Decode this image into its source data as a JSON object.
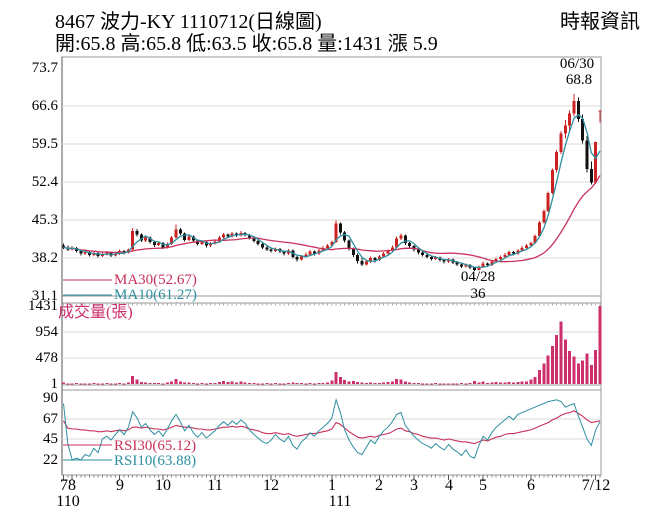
{
  "header": {
    "title": "8467 波力-KY 1110712(日線圖)",
    "source": "時報資訊",
    "quote": "開:65.8 高:65.8 低:63.5 收:65.8 量:1431 漲 5.9"
  },
  "legends": {
    "ma30": "MA30(52.67)",
    "ma10": "MA10(61.27)",
    "volume": "成交量(張)",
    "rsi30": "RSI30(65.12)",
    "rsi10": "RSI10(63.88)"
  },
  "annotations": {
    "peak_date": "06/30",
    "peak_price": "68.8",
    "low_date": "04/28",
    "low_price": "36"
  },
  "colors": {
    "up": "#cc2222",
    "down": "#111111",
    "ma30": "#c8325a",
    "ma10": "#2e8fa0",
    "rsi30": "#c8325a",
    "rsi10": "#2e8fa0",
    "volume": "#cc2f6b",
    "grid": "#d9d9d9",
    "frame": "#999999",
    "border_dark": "#555555"
  },
  "chart_data": {
    "type": "candlestick",
    "title": "8467 波力-KY 1110712(日線圖)",
    "panels": [
      "price",
      "volume",
      "rsi"
    ],
    "price_axis_ticks": [
      73.7,
      66.6,
      59.5,
      52.4,
      45.3,
      38.2,
      31.1
    ],
    "price_gridlines": [
      66.6,
      59.5,
      52.4,
      45.3,
      38.2
    ],
    "price_range": [
      31.1,
      73.7
    ],
    "volume_axis_ticks": [
      1431,
      954,
      478,
      1
    ],
    "volume_gridlines": [
      954,
      478
    ],
    "rsi_axis_ticks": [
      90,
      67,
      45,
      22
    ],
    "rsi_gridlines": [
      67,
      45
    ],
    "x_ticks": {
      "months": [
        {
          "label": "7",
          "i": 0
        },
        {
          "label": "8",
          "i": 2
        },
        {
          "label": "9",
          "i": 13
        },
        {
          "label": "10",
          "i": 23
        },
        {
          "label": "11",
          "i": 35
        },
        {
          "label": "12",
          "i": 48
        },
        {
          "label": "1",
          "i": 62
        },
        {
          "label": "2",
          "i": 73
        },
        {
          "label": "3",
          "i": 81
        },
        {
          "label": "4",
          "i": 89
        },
        {
          "label": "5",
          "i": 97
        },
        {
          "label": "6",
          "i": 108
        },
        {
          "label": "7/12",
          "i": 123
        }
      ],
      "years": [
        {
          "label": "110",
          "i": 1
        },
        {
          "label": "111",
          "i": 64
        }
      ]
    },
    "ma10_window": 4,
    "ma30_window": 20,
    "ohlc": [
      [
        40.5,
        40.9,
        39.9,
        40.2
      ],
      [
        40.2,
        40.5,
        39.5,
        39.8
      ],
      [
        39.8,
        40.4,
        39.6,
        40.1
      ],
      [
        40.1,
        40.3,
        39.2,
        39.5
      ],
      [
        39.5,
        39.7,
        38.7,
        39.0
      ],
      [
        39.0,
        39.6,
        38.8,
        39.3
      ],
      [
        39.3,
        39.5,
        38.5,
        38.8
      ],
      [
        38.8,
        39.4,
        38.6,
        39.1
      ],
      [
        39.1,
        39.3,
        38.3,
        38.6
      ],
      [
        38.6,
        39.2,
        38.4,
        38.9
      ],
      [
        38.9,
        39.5,
        38.7,
        39.2
      ],
      [
        39.2,
        39.4,
        38.4,
        38.7
      ],
      [
        38.7,
        39.3,
        38.5,
        39.0
      ],
      [
        39.0,
        39.8,
        38.8,
        39.5
      ],
      [
        39.5,
        39.7,
        38.9,
        39.2
      ],
      [
        39.2,
        40.0,
        39.0,
        39.8
      ],
      [
        39.8,
        43.8,
        39.6,
        43.2
      ],
      [
        43.2,
        43.6,
        42.2,
        42.6
      ],
      [
        42.6,
        42.8,
        41.2,
        41.5
      ],
      [
        41.5,
        42.3,
        41.2,
        42.0
      ],
      [
        42.0,
        42.2,
        40.9,
        41.2
      ],
      [
        41.2,
        41.4,
        40.3,
        40.6
      ],
      [
        40.6,
        41.3,
        40.4,
        41.0
      ],
      [
        41.0,
        41.2,
        39.9,
        40.2
      ],
      [
        40.2,
        41.1,
        40.0,
        40.8
      ],
      [
        40.8,
        42.3,
        40.6,
        42.0
      ],
      [
        42.0,
        44.5,
        41.8,
        43.5
      ],
      [
        43.5,
        43.8,
        42.5,
        42.8
      ],
      [
        42.8,
        43.0,
        41.3,
        41.6
      ],
      [
        41.6,
        42.5,
        41.4,
        42.2
      ],
      [
        42.2,
        42.4,
        41.2,
        41.5
      ],
      [
        41.5,
        41.7,
        40.5,
        40.8
      ],
      [
        40.8,
        41.5,
        40.6,
        41.2
      ],
      [
        41.2,
        41.4,
        40.2,
        40.5
      ],
      [
        40.5,
        41.2,
        40.3,
        40.9
      ],
      [
        40.9,
        41.6,
        40.7,
        41.3
      ],
      [
        41.3,
        42.3,
        41.1,
        42.0
      ],
      [
        42.0,
        42.9,
        41.8,
        42.6
      ],
      [
        42.6,
        42.8,
        41.9,
        42.2
      ],
      [
        42.2,
        43.1,
        42.0,
        42.8
      ],
      [
        42.8,
        43.0,
        42.1,
        42.4
      ],
      [
        42.4,
        43.2,
        42.2,
        42.9
      ],
      [
        42.9,
        43.1,
        42.2,
        42.5
      ],
      [
        42.5,
        42.7,
        41.7,
        42.0
      ],
      [
        42.0,
        42.2,
        41.1,
        41.4
      ],
      [
        41.4,
        41.6,
        40.5,
        40.8
      ],
      [
        40.8,
        41.0,
        39.9,
        40.2
      ],
      [
        40.2,
        40.4,
        39.5,
        39.8
      ],
      [
        39.8,
        40.0,
        39.2,
        39.5
      ],
      [
        39.5,
        40.2,
        39.3,
        39.9
      ],
      [
        39.9,
        40.1,
        39.1,
        39.4
      ],
      [
        39.4,
        39.6,
        38.7,
        39.0
      ],
      [
        39.0,
        39.9,
        38.8,
        39.6
      ],
      [
        39.6,
        39.8,
        38.1,
        38.4
      ],
      [
        38.4,
        38.6,
        37.5,
        37.9
      ],
      [
        37.9,
        38.8,
        37.7,
        38.5
      ],
      [
        38.5,
        39.2,
        38.3,
        38.9
      ],
      [
        38.9,
        39.7,
        38.7,
        39.4
      ],
      [
        39.4,
        39.6,
        38.7,
        39.0
      ],
      [
        39.0,
        39.9,
        38.8,
        39.6
      ],
      [
        39.6,
        40.4,
        39.4,
        40.1
      ],
      [
        40.1,
        40.8,
        39.9,
        40.5
      ],
      [
        40.5,
        41.5,
        40.3,
        41.2
      ],
      [
        41.2,
        45.2,
        41.0,
        44.6
      ],
      [
        44.6,
        44.8,
        42.6,
        43.0
      ],
      [
        43.0,
        43.2,
        41.1,
        41.5
      ],
      [
        41.5,
        41.7,
        39.6,
        40.0
      ],
      [
        40.0,
        40.2,
        38.4,
        38.8
      ],
      [
        38.8,
        39.0,
        37.2,
        37.6
      ],
      [
        37.6,
        38.2,
        36.7,
        37.0
      ],
      [
        37.0,
        37.9,
        36.8,
        37.5
      ],
      [
        37.5,
        38.5,
        37.3,
        38.2
      ],
      [
        38.2,
        38.4,
        37.4,
        37.8
      ],
      [
        37.8,
        38.8,
        37.6,
        38.5
      ],
      [
        38.5,
        39.3,
        38.3,
        39.0
      ],
      [
        39.0,
        39.8,
        38.8,
        39.5
      ],
      [
        39.5,
        40.5,
        39.3,
        40.2
      ],
      [
        40.2,
        42.2,
        40.0,
        41.8
      ],
      [
        41.8,
        42.8,
        41.6,
        42.4
      ],
      [
        42.4,
        42.6,
        40.6,
        41.0
      ],
      [
        41.0,
        41.2,
        40.0,
        40.4
      ],
      [
        40.4,
        40.6,
        39.4,
        39.8
      ],
      [
        39.8,
        40.0,
        38.9,
        39.2
      ],
      [
        39.2,
        39.4,
        38.5,
        38.8
      ],
      [
        38.8,
        39.0,
        38.1,
        38.4
      ],
      [
        38.4,
        38.6,
        37.7,
        38.0
      ],
      [
        38.0,
        38.6,
        37.8,
        38.3
      ],
      [
        38.3,
        38.5,
        37.5,
        37.8
      ],
      [
        37.8,
        38.0,
        37.2,
        37.5
      ],
      [
        37.5,
        38.2,
        37.3,
        37.9
      ],
      [
        37.9,
        38.1,
        37.1,
        37.4
      ],
      [
        37.4,
        37.6,
        36.7,
        37.0
      ],
      [
        37.0,
        37.2,
        36.3,
        36.6
      ],
      [
        36.6,
        37.2,
        36.4,
        36.9
      ],
      [
        36.9,
        37.1,
        36.1,
        36.4
      ],
      [
        36.4,
        36.6,
        35.8,
        36.0
      ],
      [
        36.0,
        36.8,
        35.9,
        36.5
      ],
      [
        36.5,
        37.5,
        36.3,
        37.2
      ],
      [
        37.2,
        37.4,
        36.6,
        36.9
      ],
      [
        36.9,
        37.8,
        36.7,
        37.5
      ],
      [
        37.5,
        38.3,
        37.3,
        38.0
      ],
      [
        38.0,
        38.7,
        37.8,
        38.4
      ],
      [
        38.4,
        39.1,
        38.2,
        38.8
      ],
      [
        38.8,
        39.6,
        38.6,
        39.3
      ],
      [
        39.3,
        39.5,
        38.7,
        39.0
      ],
      [
        39.0,
        39.9,
        38.8,
        39.6
      ],
      [
        39.6,
        40.4,
        39.4,
        40.1
      ],
      [
        40.1,
        40.8,
        39.9,
        40.5
      ],
      [
        40.5,
        41.3,
        40.3,
        41.0
      ],
      [
        41.0,
        42.6,
        40.8,
        42.3
      ],
      [
        42.3,
        45.1,
        42.1,
        44.8
      ],
      [
        44.8,
        47.3,
        44.6,
        47.0
      ],
      [
        47.0,
        50.6,
        46.8,
        50.3
      ],
      [
        50.3,
        54.9,
        50.1,
        54.6
      ],
      [
        54.6,
        58.4,
        54.2,
        58.0
      ],
      [
        58.0,
        61.9,
        57.6,
        61.5
      ],
      [
        61.5,
        64.0,
        60.5,
        63.0
      ],
      [
        63.0,
        65.8,
        62.0,
        65.2
      ],
      [
        65.2,
        68.8,
        64.6,
        67.5
      ],
      [
        67.5,
        68.2,
        63.6,
        64.2
      ],
      [
        64.2,
        65.0,
        59.6,
        60.2
      ],
      [
        60.2,
        61.0,
        54.2,
        54.8
      ],
      [
        54.8,
        56.2,
        51.9,
        52.3
      ],
      [
        52.3,
        60.0,
        52.0,
        59.9
      ],
      [
        65.8,
        65.8,
        63.5,
        65.8
      ]
    ],
    "volume": [
      25,
      12,
      8,
      15,
      10,
      6,
      9,
      14,
      7,
      11,
      18,
      9,
      12,
      22,
      10,
      30,
      150,
      85,
      40,
      28,
      20,
      14,
      18,
      12,
      24,
      45,
      95,
      50,
      30,
      26,
      18,
      12,
      16,
      10,
      14,
      20,
      40,
      55,
      35,
      48,
      30,
      44,
      28,
      22,
      16,
      12,
      10,
      14,
      10,
      16,
      8,
      12,
      18,
      26,
      20,
      14,
      12,
      18,
      10,
      16,
      22,
      28,
      60,
      220,
      130,
      70,
      45,
      55,
      40,
      30,
      18,
      26,
      14,
      22,
      30,
      35,
      50,
      95,
      80,
      45,
      28,
      18,
      14,
      10,
      12,
      8,
      14,
      10,
      8,
      12,
      9,
      11,
      16,
      10,
      14,
      55,
      30,
      42,
      20,
      28,
      36,
      28,
      32,
      40,
      24,
      36,
      44,
      50,
      80,
      130,
      260,
      380,
      520,
      700,
      900,
      1150,
      820,
      610,
      500,
      380,
      430,
      560,
      350,
      620,
      1431
    ],
    "rsi10": [
      84,
      40,
      22,
      24,
      22,
      28,
      26,
      35,
      30,
      45,
      48,
      44,
      50,
      55,
      50,
      58,
      75,
      68,
      58,
      62,
      55,
      50,
      54,
      48,
      56,
      65,
      72,
      64,
      54,
      60,
      52,
      47,
      52,
      46,
      50,
      54,
      60,
      64,
      60,
      65,
      61,
      66,
      62,
      55,
      50,
      46,
      42,
      40,
      44,
      50,
      45,
      42,
      48,
      38,
      34,
      42,
      46,
      52,
      48,
      54,
      58,
      62,
      68,
      88,
      74,
      55,
      44,
      36,
      30,
      28,
      36,
      44,
      40,
      48,
      54,
      58,
      64,
      72,
      74,
      60,
      54,
      48,
      44,
      40,
      38,
      35,
      40,
      36,
      33,
      39,
      34,
      31,
      27,
      33,
      26,
      24,
      38,
      48,
      44,
      52,
      58,
      62,
      66,
      70,
      66,
      72,
      74,
      76,
      78,
      80,
      82,
      84,
      86,
      87,
      88,
      86,
      80,
      82,
      84,
      70,
      58,
      45,
      38,
      55,
      64
    ],
    "rsi30": [
      65,
      57,
      56,
      56,
      55,
      55,
      54,
      54,
      53,
      53,
      54,
      53,
      54,
      55,
      54,
      55,
      58,
      58,
      57,
      58,
      57,
      56,
      56,
      55,
      56,
      58,
      60,
      59,
      58,
      58,
      57,
      56,
      56,
      55,
      55,
      56,
      57,
      58,
      58,
      59,
      58,
      59,
      58,
      56,
      55,
      54,
      52,
      51,
      51,
      52,
      51,
      50,
      51,
      49,
      48,
      49,
      50,
      51,
      51,
      52,
      53,
      54,
      56,
      63,
      61,
      57,
      53,
      50,
      47,
      46,
      47,
      48,
      47,
      49,
      50,
      51,
      53,
      56,
      57,
      54,
      53,
      51,
      50,
      48,
      47,
      46,
      46,
      45,
      44,
      45,
      44,
      43,
      42,
      42,
      41,
      40,
      42,
      44,
      43,
      45,
      47,
      48,
      50,
      51,
      51,
      52,
      53,
      54,
      55,
      57,
      59,
      61,
      63,
      66,
      68,
      71,
      73,
      74,
      76,
      73,
      70,
      66,
      63,
      64,
      65
    ],
    "key_points": {
      "last_open": 65.8,
      "last_high": 65.8,
      "last_low": 63.5,
      "last_close": 65.8,
      "last_volume": 1431,
      "change": 5.9,
      "peak_date": "06/30",
      "peak_high": 68.8,
      "low_date": "04/28",
      "low_price": 36,
      "ma30": 52.67,
      "ma10": 61.27,
      "rsi30": 65.12,
      "rsi10": 63.88
    }
  }
}
